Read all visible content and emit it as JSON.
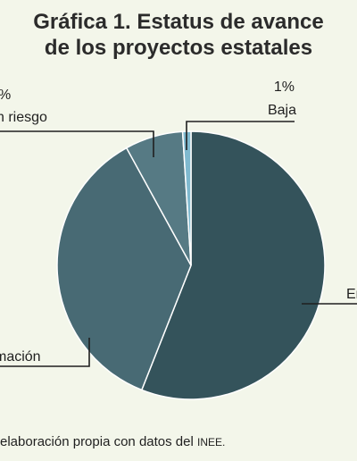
{
  "chart_data": {
    "type": "pie",
    "title": [
      "Gráfica 1. Estatus de avance",
      "de los proyectos estatales"
    ],
    "slices": [
      {
        "pct_label": "",
        "label": "En",
        "value": 56,
        "color": "#34535b"
      },
      {
        "pct_label": "",
        "label": "mación",
        "value": 36,
        "color": "#486a74"
      },
      {
        "pct_label": "%",
        "label": "n riesgo",
        "value": 7,
        "color": "#567a84"
      },
      {
        "pct_label": "1%",
        "label": "Baja",
        "value": 1,
        "color": "#7fb9cf"
      }
    ],
    "source_text": "elaboración propia con datos del ",
    "source_abbr": "INEE."
  }
}
